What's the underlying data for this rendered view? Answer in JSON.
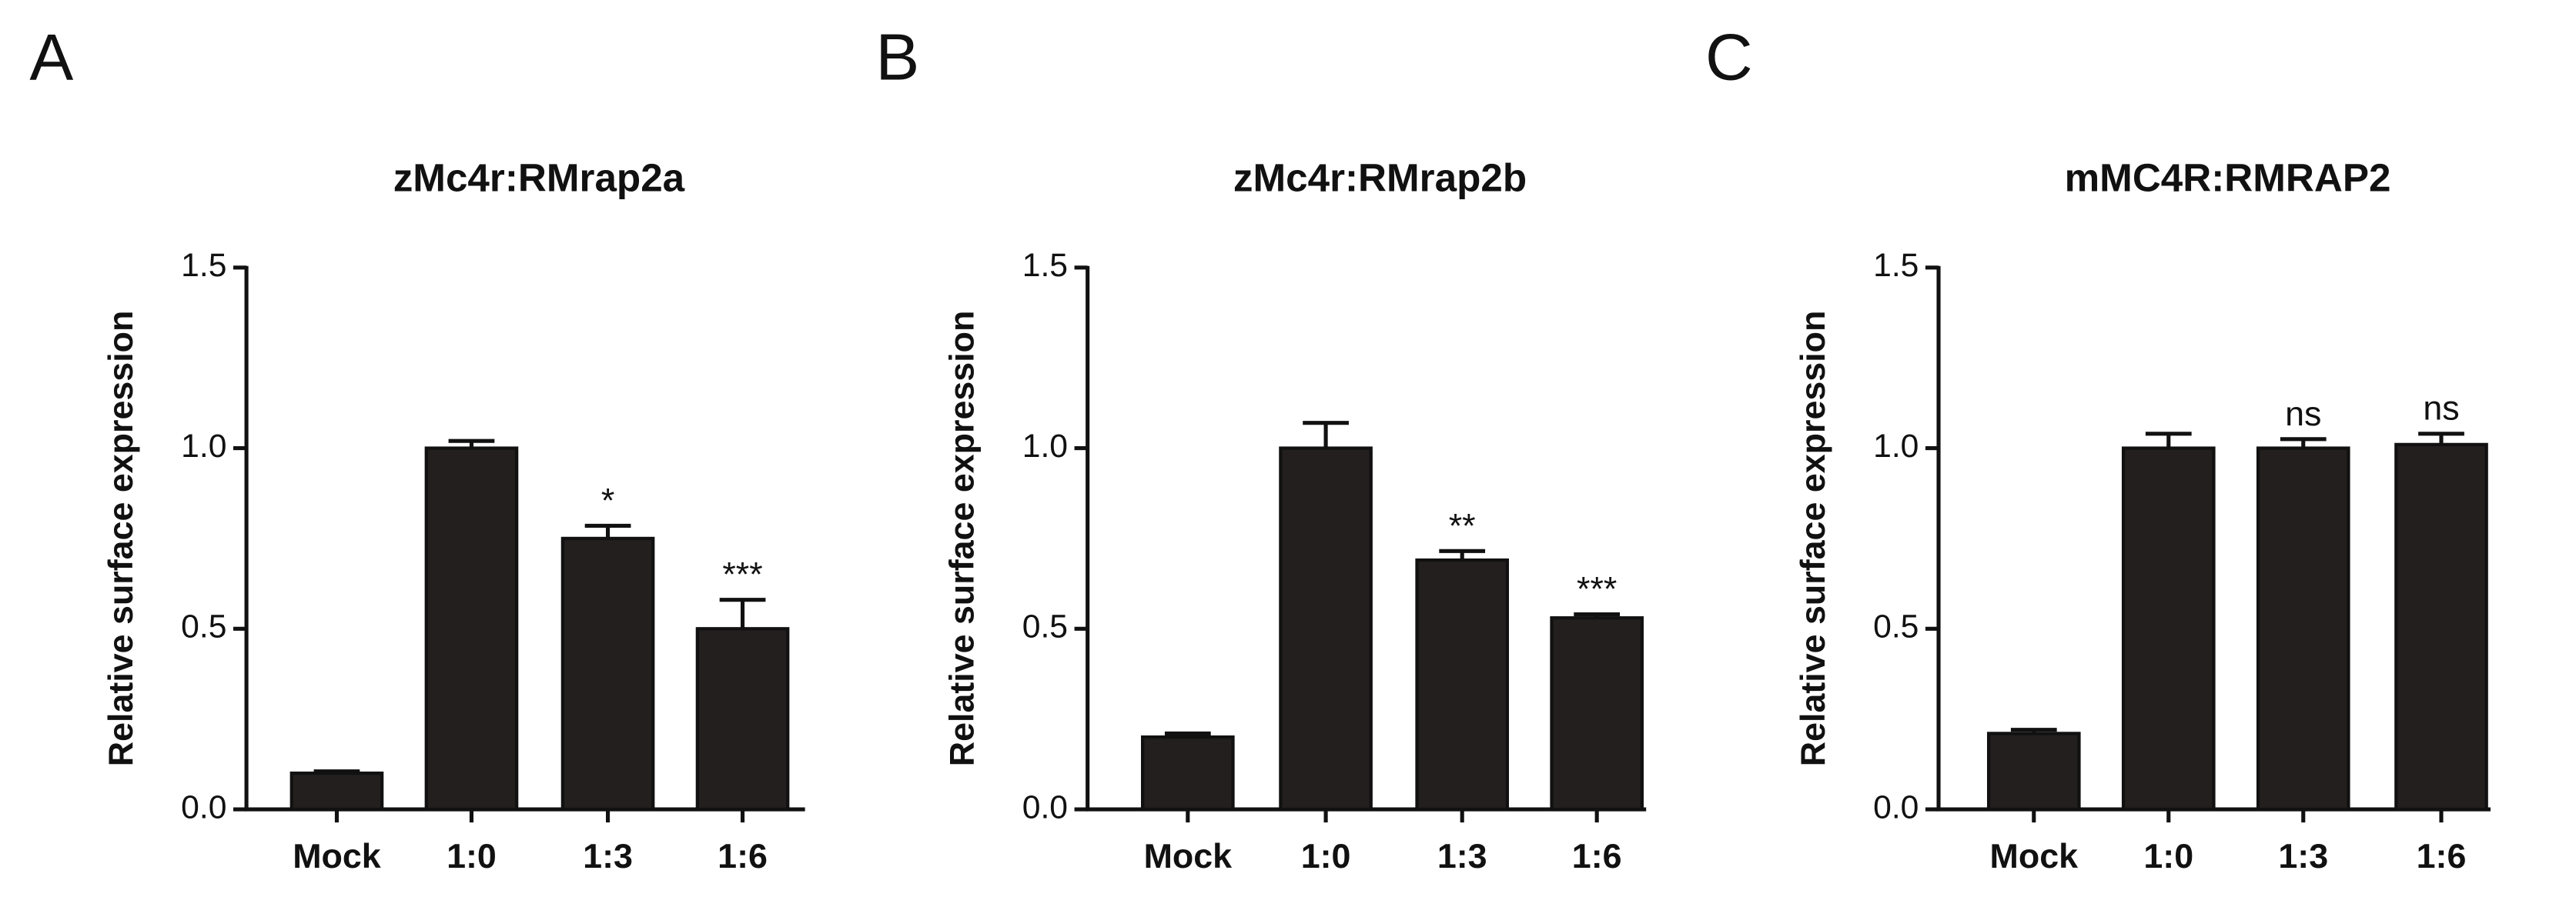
{
  "chart_data": [
    {
      "type": "bar",
      "panel": "A",
      "title": "zMc4r:RMrap2a",
      "ylabel": "Relative surface expression",
      "categories": [
        "Mock",
        "1:0",
        "1:3",
        "1:6"
      ],
      "values": [
        0.1,
        1.0,
        0.75,
        0.5
      ],
      "errors": [
        0.005,
        0.02,
        0.035,
        0.08
      ],
      "annotations": [
        null,
        null,
        "*",
        "***"
      ],
      "color": "#231f1e",
      "ylim": [
        0,
        1.5
      ],
      "yticks": [
        {
          "value": 0,
          "label": "0.0"
        },
        0.5,
        {
          "value": 1,
          "label": "1.0"
        },
        1.5
      ]
    },
    {
      "type": "bar",
      "panel": "B",
      "title": "zMc4r:RMrap2b",
      "ylabel": "Relative surface expression",
      "categories": [
        "Mock",
        "1:0",
        "1:3",
        "1:6"
      ],
      "values": [
        0.2,
        1.0,
        0.69,
        0.53
      ],
      "errors": [
        0.01,
        0.07,
        0.025,
        0.01
      ],
      "annotations": [
        null,
        null,
        "**",
        "***"
      ],
      "color": "#231f1e",
      "ylim": [
        0,
        1.5
      ],
      "yticks": [
        {
          "value": 0,
          "label": "0.0"
        },
        0.5,
        {
          "value": 1,
          "label": "1.0"
        },
        1.5
      ]
    },
    {
      "type": "bar",
      "panel": "C",
      "title": "mMC4R:RMRAP2",
      "ylabel": "Relative surface expression",
      "categories": [
        "Mock",
        "1:0",
        "1:3",
        "1:6"
      ],
      "values": [
        0.21,
        1.0,
        1.0,
        1.01
      ],
      "errors": [
        0.01,
        0.04,
        0.025,
        0.03
      ],
      "annotations": [
        null,
        null,
        "ns",
        "ns"
      ],
      "color": "#231f1e",
      "ylim": [
        0,
        1.5
      ],
      "yticks": [
        {
          "value": 0,
          "label": "0.0"
        },
        0.5,
        {
          "value": 1,
          "label": "1.0"
        },
        1.5
      ]
    }
  ]
}
